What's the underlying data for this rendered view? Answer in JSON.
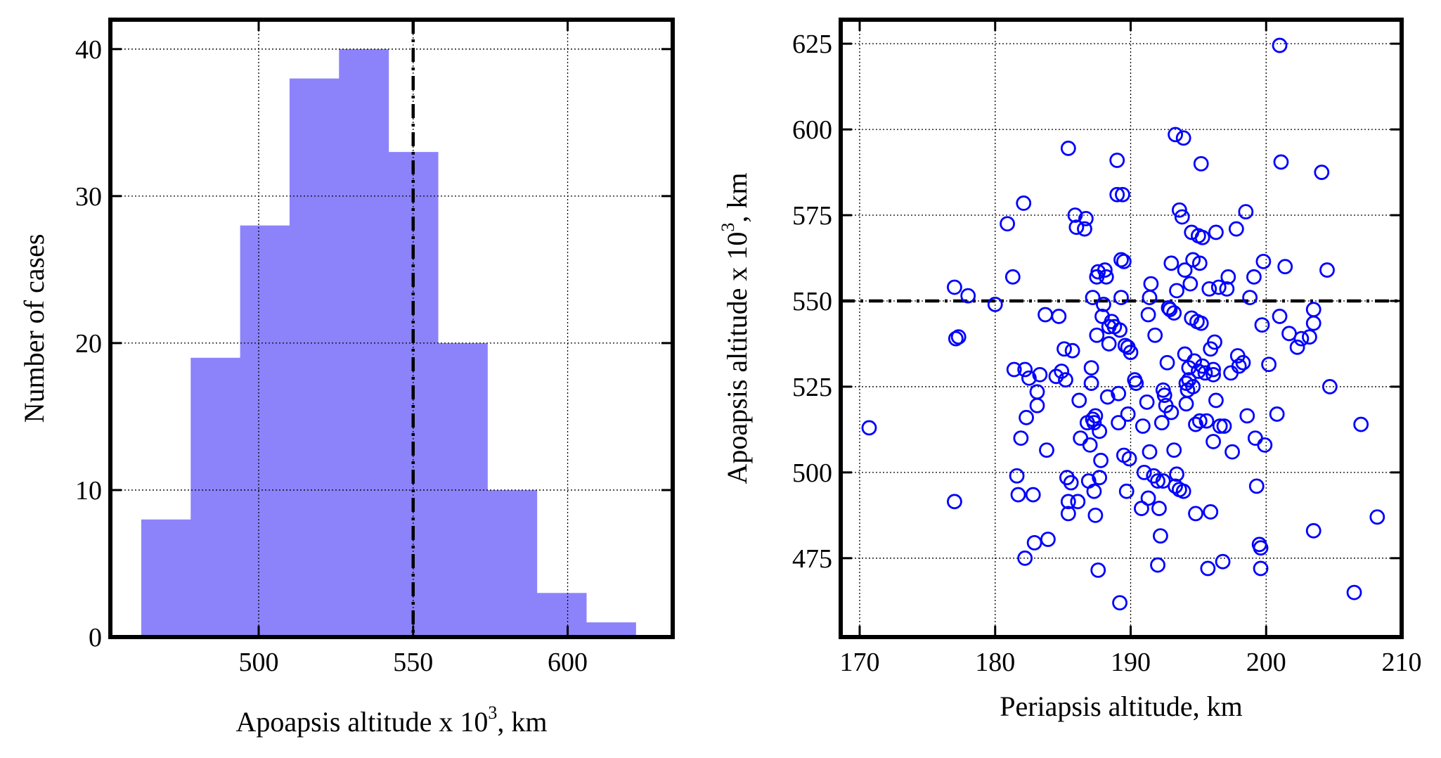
{
  "chart_data": [
    {
      "type": "bar",
      "subtype": "histogram",
      "xlabel": {
        "text": "Apoapsis altitude x 10",
        "sup": "3",
        "suffix": ", km"
      },
      "ylabel": "Number of cases",
      "xlim": [
        452,
        634
      ],
      "ylim": [
        0,
        42
      ],
      "xticks": [
        500,
        550,
        600
      ],
      "yticks": [
        0,
        10,
        20,
        30,
        40
      ],
      "bins": [
        {
          "x0": 462,
          "x1": 478,
          "count": 8
        },
        {
          "x0": 478,
          "x1": 494,
          "count": 19
        },
        {
          "x0": 494,
          "x1": 510,
          "count": 28
        },
        {
          "x0": 510,
          "x1": 526,
          "count": 38
        },
        {
          "x0": 526,
          "x1": 542,
          "count": 40
        },
        {
          "x0": 542,
          "x1": 558,
          "count": 33
        },
        {
          "x0": 558,
          "x1": 574,
          "count": 20
        },
        {
          "x0": 574,
          "x1": 590,
          "count": 10
        },
        {
          "x0": 590,
          "x1": 606,
          "count": 3
        },
        {
          "x0": 606,
          "x1": 622,
          "count": 1
        }
      ],
      "reference_line": {
        "orientation": "vertical",
        "value": 550,
        "style": "dash-dot",
        "color": "#000000"
      },
      "bar_color": "#8c83fb",
      "grid": true
    },
    {
      "type": "scatter",
      "xlabel": {
        "text": "Periapsis altitude, km"
      },
      "ylabel": {
        "text": "Apoapsis altitude x 10",
        "sup": "3",
        "suffix": ", km"
      },
      "xlim": [
        168.6,
        210
      ],
      "ylim": [
        452,
        632
      ],
      "xticks": [
        170,
        180,
        190,
        200,
        210
      ],
      "yticks": [
        475,
        500,
        525,
        550,
        575,
        600,
        625
      ],
      "reference_line": {
        "orientation": "horizontal",
        "value": 550,
        "style": "dash-dot",
        "color": "#000000"
      },
      "marker": "open-circle",
      "marker_color": "#0000ff",
      "grid": true,
      "points": [
        [
          170.7,
          513
        ],
        [
          177.0,
          554
        ],
        [
          178.0,
          551.5
        ],
        [
          177.3,
          539.5
        ],
        [
          177.1,
          539
        ],
        [
          177.0,
          491.5
        ],
        [
          180.0,
          549
        ],
        [
          180.9,
          572.5
        ],
        [
          181.3,
          557
        ],
        [
          181.4,
          530
        ],
        [
          181.6,
          499
        ],
        [
          181.9,
          510
        ],
        [
          181.7,
          493.5
        ],
        [
          182.1,
          578.5
        ],
        [
          182.2,
          530
        ],
        [
          182.3,
          516
        ],
        [
          182.5,
          527.5
        ],
        [
          182.8,
          493.5
        ],
        [
          182.9,
          479.5
        ],
        [
          182.2,
          475
        ],
        [
          183.1,
          523.5
        ],
        [
          183.1,
          519.5
        ],
        [
          183.3,
          528.5
        ],
        [
          183.7,
          546
        ],
        [
          183.8,
          506.5
        ],
        [
          183.9,
          480.5
        ],
        [
          184.7,
          545.5
        ],
        [
          184.5,
          528
        ],
        [
          184.9,
          529.5
        ],
        [
          185.1,
          536
        ],
        [
          185.2,
          527
        ],
        [
          185.3,
          498.5
        ],
        [
          185.4,
          491.5
        ],
        [
          185.4,
          488
        ],
        [
          185.4,
          594.5
        ],
        [
          185.6,
          497
        ],
        [
          185.7,
          535.5
        ],
        [
          185.9,
          575
        ],
        [
          186.0,
          571.5
        ],
        [
          186.1,
          491.5
        ],
        [
          186.2,
          521
        ],
        [
          186.3,
          510
        ],
        [
          186.6,
          571
        ],
        [
          186.7,
          574
        ],
        [
          186.8,
          514.5
        ],
        [
          186.9,
          497.5
        ],
        [
          187.0,
          508
        ],
        [
          187.1,
          530.5
        ],
        [
          187.1,
          526
        ],
        [
          187.2,
          551
        ],
        [
          187.2,
          515.5
        ],
        [
          187.3,
          494.5
        ],
        [
          187.3,
          514.5
        ],
        [
          187.4,
          487.5
        ],
        [
          187.4,
          516.5
        ],
        [
          187.5,
          557
        ],
        [
          187.5,
          540
        ],
        [
          187.6,
          558.5
        ],
        [
          187.6,
          471.5
        ],
        [
          187.7,
          512
        ],
        [
          187.7,
          498.5
        ],
        [
          187.8,
          503.5
        ],
        [
          187.9,
          545.5
        ],
        [
          188.0,
          549
        ],
        [
          188.1,
          559
        ],
        [
          188.2,
          557
        ],
        [
          188.3,
          522
        ],
        [
          188.4,
          542.5
        ],
        [
          188.4,
          537.5
        ],
        [
          188.6,
          544
        ],
        [
          188.8,
          542.5
        ],
        [
          189.0,
          591
        ],
        [
          189.0,
          581
        ],
        [
          189.1,
          514.5
        ],
        [
          189.1,
          523
        ],
        [
          189.2,
          541.5
        ],
        [
          189.2,
          462
        ],
        [
          189.3,
          562
        ],
        [
          189.3,
          551
        ],
        [
          189.4,
          581
        ],
        [
          189.5,
          505
        ],
        [
          189.5,
          561.5
        ],
        [
          189.6,
          537
        ],
        [
          189.7,
          494.5
        ],
        [
          189.8,
          536.5
        ],
        [
          189.8,
          517
        ],
        [
          189.9,
          504
        ],
        [
          190.0,
          535
        ],
        [
          190.3,
          527
        ],
        [
          190.4,
          526
        ],
        [
          190.8,
          489.5
        ],
        [
          190.9,
          513.5
        ],
        [
          191.0,
          500
        ],
        [
          191.2,
          520.5
        ],
        [
          191.3,
          546
        ],
        [
          191.3,
          492.5
        ],
        [
          191.4,
          506
        ],
        [
          191.4,
          551
        ],
        [
          191.5,
          555
        ],
        [
          191.7,
          499
        ],
        [
          191.8,
          540
        ],
        [
          192.0,
          473
        ],
        [
          192.0,
          497.5
        ],
        [
          192.1,
          489.5
        ],
        [
          192.2,
          481.5
        ],
        [
          192.3,
          514.5
        ],
        [
          192.4,
          524
        ],
        [
          192.4,
          497.5
        ],
        [
          192.5,
          522.5
        ],
        [
          192.6,
          519.5
        ],
        [
          192.7,
          532
        ],
        [
          192.8,
          548
        ],
        [
          192.9,
          547.5
        ],
        [
          193.0,
          561
        ],
        [
          193.0,
          517.5
        ],
        [
          193.2,
          546.5
        ],
        [
          193.2,
          506.5
        ],
        [
          193.3,
          598.5
        ],
        [
          193.3,
          496
        ],
        [
          193.4,
          499.5
        ],
        [
          193.4,
          553
        ],
        [
          193.6,
          495
        ],
        [
          193.6,
          576.5
        ],
        [
          193.8,
          574.5
        ],
        [
          193.9,
          494.5
        ],
        [
          193.9,
          597.5
        ],
        [
          194.0,
          559
        ],
        [
          194.0,
          534.5
        ],
        [
          194.1,
          526
        ],
        [
          194.1,
          520
        ],
        [
          194.2,
          524
        ],
        [
          194.3,
          527
        ],
        [
          194.3,
          530.5
        ],
        [
          194.4,
          555
        ],
        [
          194.5,
          545
        ],
        [
          194.5,
          570
        ],
        [
          194.6,
          562
        ],
        [
          194.6,
          525
        ],
        [
          194.7,
          532.5
        ],
        [
          194.8,
          514
        ],
        [
          194.8,
          488
        ],
        [
          194.9,
          544
        ],
        [
          195.0,
          569
        ],
        [
          195.0,
          529.5
        ],
        [
          195.1,
          561
        ],
        [
          195.1,
          515
        ],
        [
          195.2,
          543.5
        ],
        [
          195.2,
          590
        ],
        [
          195.3,
          568.5
        ],
        [
          195.3,
          531
        ],
        [
          195.5,
          529
        ],
        [
          195.6,
          515
        ],
        [
          195.7,
          472
        ],
        [
          195.8,
          553.5
        ],
        [
          195.9,
          488.5
        ],
        [
          195.9,
          536
        ],
        [
          196.1,
          528.5
        ],
        [
          196.1,
          509
        ],
        [
          196.1,
          530
        ],
        [
          196.2,
          538
        ],
        [
          196.3,
          521
        ],
        [
          196.3,
          570
        ],
        [
          196.5,
          554
        ],
        [
          196.6,
          513.5
        ],
        [
          196.8,
          474
        ],
        [
          196.9,
          513.5
        ],
        [
          197.1,
          553.5
        ],
        [
          197.2,
          557
        ],
        [
          197.4,
          529
        ],
        [
          197.5,
          506
        ],
        [
          197.8,
          571
        ],
        [
          197.9,
          534
        ],
        [
          198.0,
          531
        ],
        [
          198.3,
          532
        ],
        [
          198.5,
          576
        ],
        [
          198.6,
          516.5
        ],
        [
          198.8,
          551
        ],
        [
          199.1,
          557
        ],
        [
          199.2,
          510
        ],
        [
          199.3,
          496
        ],
        [
          199.5,
          479
        ],
        [
          199.6,
          478
        ],
        [
          199.6,
          472
        ],
        [
          199.7,
          543
        ],
        [
          199.8,
          561.5
        ],
        [
          199.9,
          508
        ],
        [
          200.2,
          531.5
        ],
        [
          200.8,
          517
        ],
        [
          201.0,
          545.5
        ],
        [
          201.0,
          624.5
        ],
        [
          201.1,
          590.5
        ],
        [
          201.4,
          560
        ],
        [
          201.7,
          540.5
        ],
        [
          202.3,
          536.5
        ],
        [
          202.6,
          539
        ],
        [
          203.2,
          539.5
        ],
        [
          203.5,
          543.5
        ],
        [
          203.5,
          547.5
        ],
        [
          203.5,
          483
        ],
        [
          204.1,
          587.5
        ],
        [
          204.5,
          559
        ],
        [
          204.7,
          525
        ],
        [
          206.5,
          465
        ],
        [
          207.0,
          514
        ],
        [
          208.2,
          487
        ]
      ]
    }
  ]
}
